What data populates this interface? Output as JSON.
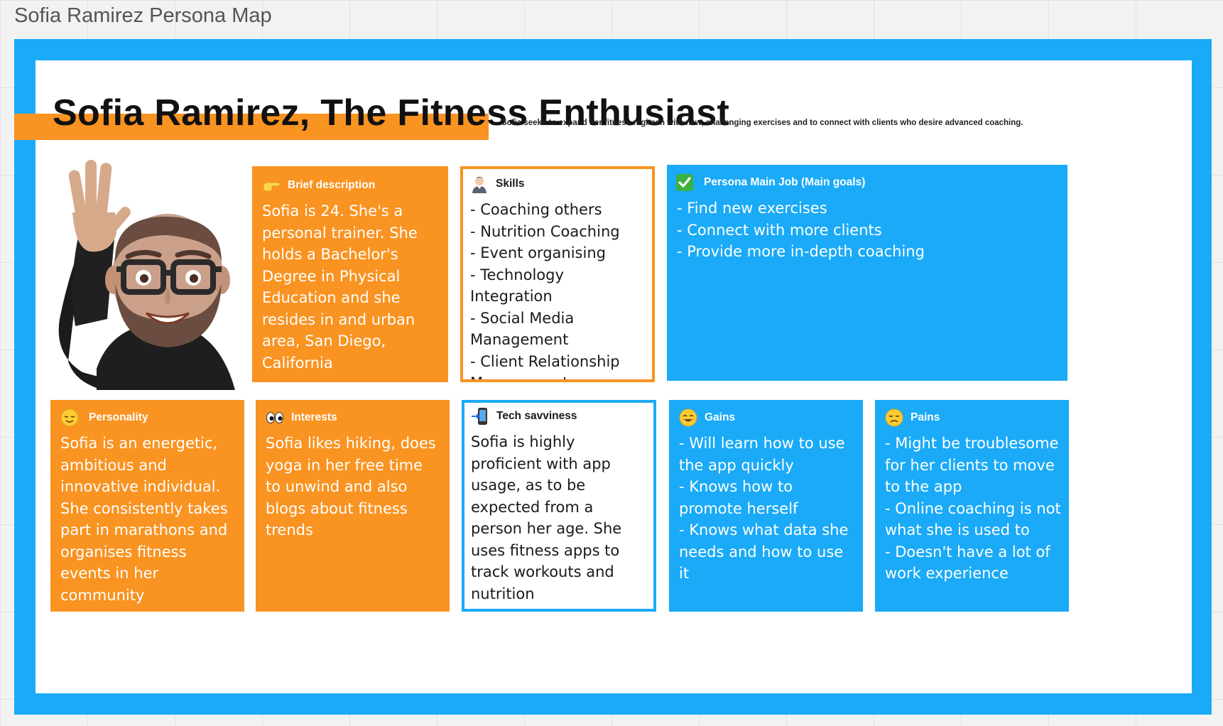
{
  "board": {
    "title": "Sofia Ramirez Persona Map"
  },
  "persona": {
    "title": "Sofia Ramirez, The Fitness Enthusiast",
    "subtitle": "Sofia seeks to expand her fitness regimen with new, challenging exercises and to connect with clients who desire advanced coaching."
  },
  "cards": {
    "brief": {
      "icon": "pointing-hand-icon",
      "title": "Brief description",
      "lines": [
        "Sofia is 24. She's a personal trainer. She holds a Bachelor's Degree in Physical Education and she resides in and urban area, San Diego, California"
      ]
    },
    "skills": {
      "icon": "person-icon",
      "title": "Skills",
      "lines": [
        "- Coaching others",
        "- Nutrition Coaching",
        "- Event organising",
        "-  Technology Integration",
        "- Social Media Management",
        "- Client Relationship Management"
      ]
    },
    "goals": {
      "icon": "check-mark-icon",
      "title": "Persona Main Job (Main goals)",
      "lines": [
        "- Find new exercises",
        "- Connect with more clients",
        "- Provide more in-depth coaching"
      ]
    },
    "personality": {
      "icon": "relieved-face-icon",
      "title": "Personality",
      "lines": [
        "Sofia is an energetic, ambitious and innovative individual. She consistently takes part in marathons and organises fitness events in her community"
      ]
    },
    "interests": {
      "icon": "eyes-icon",
      "title": "Interests",
      "lines": [
        "Sofia likes hiking, does yoga in her free time to unwind and also blogs about fitness trends"
      ]
    },
    "tech": {
      "icon": "mobile-phone-arrow-icon",
      "title": "Tech savviness",
      "lines": [
        "Sofia is highly proficient with app usage, as to be expected from a person her age. She uses fitness apps to track workouts and nutrition"
      ]
    },
    "gains": {
      "icon": "smiling-face-icon",
      "title": "Gains",
      "lines": [
        "- Will learn how to use the app quickly",
        "- Knows how to promote herself",
        "- Knows what data she needs and how to use it"
      ]
    },
    "pains": {
      "icon": "disappointed-face-icon",
      "title": "Pains",
      "lines": [
        "- Might be troublesome for her clients to move to the app",
        "- Online coaching is not what she is used to",
        "- Doesn't have a lot of work experience"
      ]
    }
  },
  "colors": {
    "orange": "#f99321",
    "blue": "#1aaaf7",
    "white": "#ffffff"
  }
}
